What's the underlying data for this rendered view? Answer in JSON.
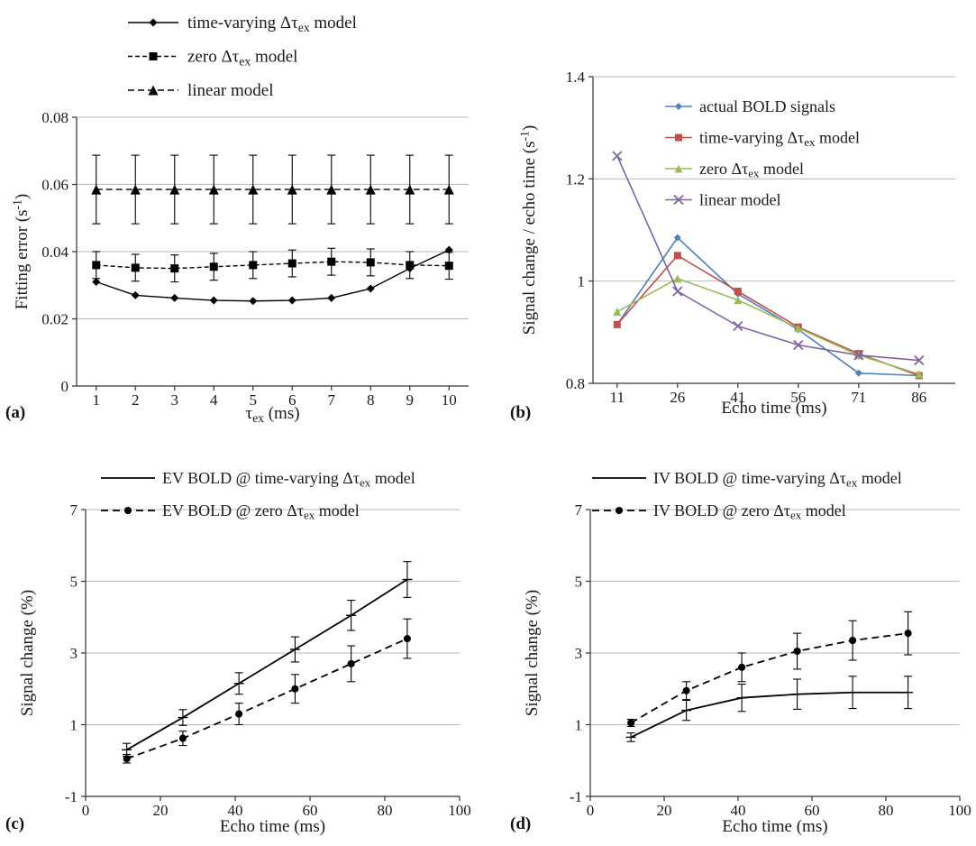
{
  "chart_data": [
    {
      "id": "a",
      "panel_label": "(a)",
      "type": "line",
      "xlabel": "τ_{ex} (ms)",
      "ylabel": "Fitting error (s^{-1})",
      "xlim": [
        0.5,
        10.5
      ],
      "ylim": [
        0,
        0.08
      ],
      "grid": "horizontal",
      "legend_position": "above-top-left",
      "xticks": [
        {
          "v": 1,
          "label": "1"
        },
        {
          "v": 2,
          "label": "2"
        },
        {
          "v": 3,
          "label": "3"
        },
        {
          "v": 4,
          "label": "4"
        },
        {
          "v": 5,
          "label": "5"
        },
        {
          "v": 6,
          "label": "6"
        },
        {
          "v": 7,
          "label": "7"
        },
        {
          "v": 8,
          "label": "8"
        },
        {
          "v": 9,
          "label": "9"
        },
        {
          "v": 10,
          "label": "10"
        }
      ],
      "yticks": [
        {
          "v": 0,
          "label": "0"
        },
        {
          "v": 0.02,
          "label": "0.02"
        },
        {
          "v": 0.04,
          "label": "0.04"
        },
        {
          "v": 0.06,
          "label": "0.06"
        },
        {
          "v": 0.08,
          "label": "0.08"
        }
      ],
      "series": [
        {
          "name": "time-varying Δτ_{ex} model",
          "color": "#000000",
          "line": "solid",
          "marker": "diamond",
          "msize": 4.5,
          "width": 1.4,
          "x": [
            1,
            2,
            3,
            4,
            5,
            6,
            7,
            8,
            9,
            10
          ],
          "y": [
            0.031,
            0.027,
            0.0262,
            0.0255,
            0.0253,
            0.0255,
            0.0262,
            0.029,
            0.035,
            0.0405
          ]
        },
        {
          "name": "zero Δτ_{ex} model",
          "color": "#000000",
          "line": "dashed",
          "dash": "5,3",
          "marker": "square",
          "msize": 4.5,
          "width": 1.4,
          "x": [
            1,
            2,
            3,
            4,
            5,
            6,
            7,
            8,
            9,
            10
          ],
          "y": [
            0.036,
            0.0352,
            0.035,
            0.0355,
            0.036,
            0.0365,
            0.037,
            0.0368,
            0.036,
            0.0358
          ],
          "yerr": [
            0.004,
            0.004,
            0.004,
            0.004,
            0.004,
            0.004,
            0.004,
            0.004,
            0.004,
            0.004
          ]
        },
        {
          "name": "linear model",
          "color": "#000000",
          "line": "dashed",
          "dash": "7,4",
          "marker": "triangle",
          "msize": 5.5,
          "width": 1.4,
          "x": [
            1,
            2,
            3,
            4,
            5,
            6,
            7,
            8,
            9,
            10
          ],
          "y": [
            0.0585,
            0.0585,
            0.0585,
            0.0585,
            0.0585,
            0.0585,
            0.0585,
            0.0585,
            0.0585,
            0.0585
          ],
          "yerr": [
            0.0102,
            0.0102,
            0.0102,
            0.0102,
            0.0102,
            0.0102,
            0.0102,
            0.0102,
            0.0102,
            0.0102
          ]
        }
      ]
    },
    {
      "id": "b",
      "panel_label": "(b)",
      "type": "line",
      "xlabel": "Echo time (ms)",
      "ylabel": "Signal change / echo time (s^{-1})",
      "xlim": [
        5,
        95
      ],
      "ylim": [
        0.8,
        1.4
      ],
      "grid": "horizontal",
      "legend_position": "inside-top-right",
      "xticks": [
        {
          "v": 11,
          "label": "11"
        },
        {
          "v": 26,
          "label": "26"
        },
        {
          "v": 41,
          "label": "41"
        },
        {
          "v": 56,
          "label": "56"
        },
        {
          "v": 71,
          "label": "71"
        },
        {
          "v": 86,
          "label": "86"
        }
      ],
      "yticks": [
        {
          "v": 0.8,
          "label": "0.8"
        },
        {
          "v": 1.0,
          "label": "1"
        },
        {
          "v": 1.2,
          "label": "1.2"
        },
        {
          "v": 1.4,
          "label": "1.4"
        }
      ],
      "series": [
        {
          "name": "actual BOLD signals",
          "color": "#4F81BD",
          "line": "solid",
          "marker": "diamond",
          "msize": 4,
          "width": 1.6,
          "x": [
            11,
            26,
            41,
            56,
            71,
            86
          ],
          "y": [
            0.915,
            1.085,
            0.975,
            0.905,
            0.82,
            0.815
          ]
        },
        {
          "name": "time-varying Δτ_{ex} model",
          "color": "#C0504D",
          "line": "solid",
          "marker": "square",
          "msize": 4,
          "width": 1.6,
          "x": [
            11,
            26,
            41,
            56,
            71,
            86
          ],
          "y": [
            0.915,
            1.05,
            0.98,
            0.91,
            0.858,
            0.815
          ]
        },
        {
          "name": "zero Δτ_{ex} model",
          "color": "#9BBB59",
          "line": "solid",
          "marker": "triangle",
          "msize": 4.5,
          "width": 1.6,
          "x": [
            11,
            26,
            41,
            56,
            71,
            86
          ],
          "y": [
            0.94,
            1.005,
            0.963,
            0.908,
            0.855,
            0.818
          ]
        },
        {
          "name": "linear model",
          "color": "#8064A2",
          "line": "solid",
          "marker": "x",
          "msize": 5,
          "width": 1.6,
          "x": [
            11,
            26,
            41,
            56,
            71,
            86
          ],
          "y": [
            1.245,
            0.98,
            0.912,
            0.875,
            0.855,
            0.845
          ]
        }
      ]
    },
    {
      "id": "c",
      "panel_label": "(c)",
      "type": "line",
      "xlabel": "Echo time (ms)",
      "ylabel": "Signal change (%)",
      "xlim": [
        0,
        100
      ],
      "ylim": [
        -1,
        7
      ],
      "grid": "horizontal",
      "legend_position": "above-top-left",
      "xticks": [
        {
          "v": 0,
          "label": "0"
        },
        {
          "v": 20,
          "label": "20"
        },
        {
          "v": 40,
          "label": "40"
        },
        {
          "v": 60,
          "label": "60"
        },
        {
          "v": 80,
          "label": "80"
        },
        {
          "v": 100,
          "label": "100"
        }
      ],
      "yticks": [
        {
          "v": -1,
          "label": "-1"
        },
        {
          "v": 1,
          "label": "1"
        },
        {
          "v": 3,
          "label": "3"
        },
        {
          "v": 5,
          "label": "5"
        },
        {
          "v": 7,
          "label": "7"
        }
      ],
      "series": [
        {
          "name": "EV BOLD @ time-varying Δτ_{ex} model",
          "color": "#000000",
          "line": "solid",
          "marker": "dash",
          "msize": 4.5,
          "width": 1.8,
          "x": [
            11,
            26,
            41,
            56,
            71,
            86
          ],
          "y": [
            0.3,
            1.2,
            2.15,
            3.1,
            4.05,
            5.05
          ],
          "yerr": [
            0.18,
            0.22,
            0.3,
            0.35,
            0.42,
            0.5
          ]
        },
        {
          "name": "EV BOLD @ zero Δτ_{ex} model",
          "color": "#000000",
          "line": "dashed",
          "dash": "8,5",
          "marker": "circle",
          "msize": 4.5,
          "width": 1.8,
          "x": [
            11,
            26,
            41,
            56,
            71,
            86
          ],
          "y": [
            0.05,
            0.62,
            1.3,
            2.0,
            2.7,
            3.4
          ],
          "yerr": [
            0.12,
            0.2,
            0.3,
            0.4,
            0.5,
            0.55
          ]
        }
      ]
    },
    {
      "id": "d",
      "panel_label": "(d)",
      "type": "line",
      "xlabel": "Echo time (ms)",
      "ylabel": "Signal change (%)",
      "xlim": [
        0,
        100
      ],
      "ylim": [
        -1,
        7
      ],
      "grid": "horizontal",
      "legend_position": "above-top-left",
      "xticks": [
        {
          "v": 0,
          "label": "0"
        },
        {
          "v": 20,
          "label": "20"
        },
        {
          "v": 40,
          "label": "40"
        },
        {
          "v": 60,
          "label": "60"
        },
        {
          "v": 80,
          "label": "80"
        },
        {
          "v": 100,
          "label": "100"
        }
      ],
      "yticks": [
        {
          "v": -1,
          "label": "-1"
        },
        {
          "v": 1,
          "label": "1"
        },
        {
          "v": 3,
          "label": "3"
        },
        {
          "v": 5,
          "label": "5"
        },
        {
          "v": 7,
          "label": "7"
        }
      ],
      "series": [
        {
          "name": "IV BOLD @ time-varying Δτ_{ex} model",
          "color": "#000000",
          "line": "solid",
          "marker": "dash",
          "msize": 4.5,
          "width": 1.8,
          "x": [
            11,
            26,
            41,
            56,
            71,
            86
          ],
          "y": [
            0.65,
            1.4,
            1.75,
            1.85,
            1.9,
            1.9
          ],
          "yerr": [
            0.12,
            0.28,
            0.38,
            0.42,
            0.45,
            0.45
          ]
        },
        {
          "name": "IV BOLD @ zero Δτ_{ex} model",
          "color": "#000000",
          "line": "dashed",
          "dash": "8,5",
          "marker": "circle",
          "msize": 4.5,
          "width": 1.8,
          "x": [
            11,
            26,
            41,
            56,
            71,
            86
          ],
          "y": [
            1.05,
            1.95,
            2.6,
            3.05,
            3.35,
            3.55
          ],
          "yerr": [
            0.1,
            0.25,
            0.4,
            0.5,
            0.55,
            0.6
          ]
        }
      ]
    }
  ]
}
